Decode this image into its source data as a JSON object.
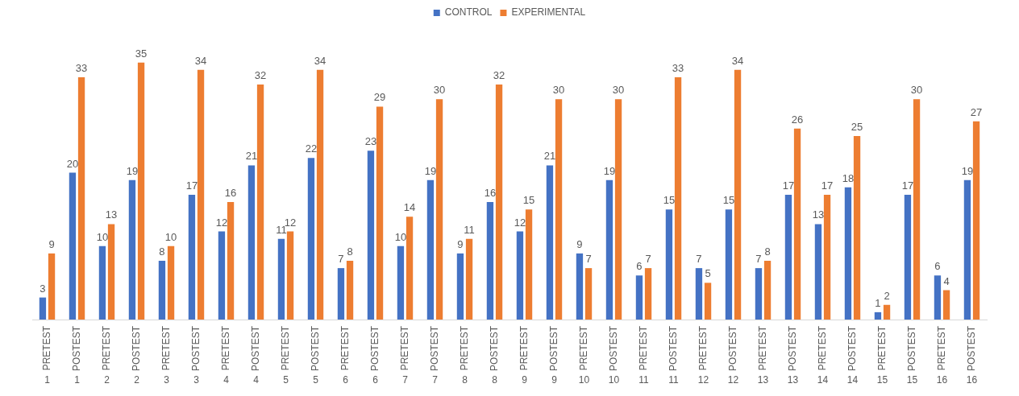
{
  "chart_data": {
    "type": "bar",
    "categories": [
      "PRETEST\n1",
      "POSTEST\n1",
      "PRETEST\n2",
      "POSTEST\n2",
      "PRETEST\n3",
      "POSTEST\n3",
      "PRETEST\n4",
      "POSTEST\n4",
      "PRETEST\n5",
      "POSTEST\n5",
      "PRETEST\n6",
      "POSTEST\n6",
      "PRETEST\n7",
      "POSTEST\n7",
      "PRETEST\n8",
      "POSTEST\n8",
      "PRETEST\n9",
      "POSTEST\n9",
      "PRETEST\n10",
      "POSTEST\n10",
      "PRETEST\n11",
      "POSTEST\n11",
      "PRETEST\n12",
      "POSTEST\n12",
      "PRETEST\n13",
      "POSTEST\n13",
      "PRETEST\n14",
      "POSTEST\n14",
      "PRETEST\n15",
      "POSTEST\n15",
      "PRETEST\n16",
      "POSTEST\n16"
    ],
    "series": [
      {
        "name": "CONTROL",
        "color": "#4472c4",
        "values": [
          3,
          20,
          10,
          19,
          8,
          17,
          12,
          21,
          11,
          22,
          7,
          23,
          10,
          19,
          9,
          16,
          12,
          21,
          9,
          19,
          6,
          15,
          7,
          15,
          7,
          17,
          13,
          18,
          1,
          17,
          6,
          19
        ]
      },
      {
        "name": "EXPERIMENTAL",
        "color": "#ed7d31",
        "values": [
          9,
          33,
          13,
          35,
          10,
          34,
          16,
          32,
          12,
          34,
          8,
          29,
          14,
          30,
          11,
          32,
          15,
          30,
          7,
          30,
          7,
          33,
          5,
          34,
          8,
          26,
          17,
          25,
          2,
          30,
          4,
          27
        ]
      }
    ],
    "data_labels": true,
    "legend": "top",
    "grid": false
  }
}
